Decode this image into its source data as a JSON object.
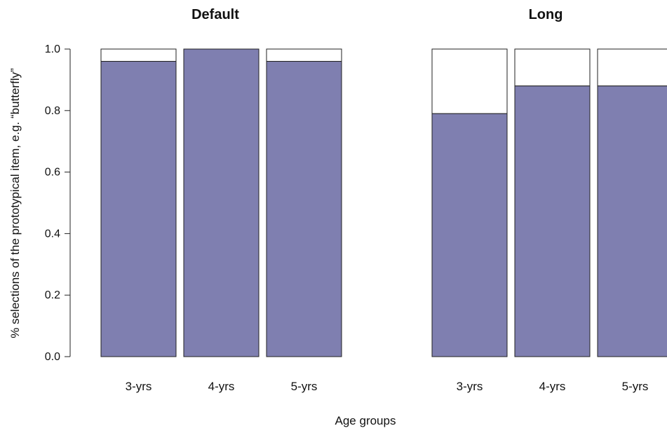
{
  "chart_data": [
    {
      "type": "bar",
      "title": "Default",
      "categories": [
        "3-yrs",
        "4-yrs",
        "5-yrs"
      ],
      "values": [
        0.96,
        1.0,
        0.96
      ],
      "ylim": [
        0,
        1
      ],
      "yticks": [
        "0.0",
        "0.2",
        "0.4",
        "0.6",
        "0.8",
        "1.0"
      ],
      "ylabel": "% selections of the prototypical item, e.g. “butterfly”",
      "xlabel": "Age groups",
      "stacked_remainder": true,
      "grid": false
    },
    {
      "type": "bar",
      "title": "Long",
      "categories": [
        "3-yrs",
        "4-yrs",
        "5-yrs"
      ],
      "values": [
        0.79,
        0.88,
        0.88
      ],
      "ylim": [
        0,
        1
      ],
      "stacked_remainder": true,
      "grid": false
    }
  ],
  "colors": {
    "bar_fill": "#7f7fb0",
    "remainder_fill": "#ffffff",
    "stroke": "#222222"
  }
}
